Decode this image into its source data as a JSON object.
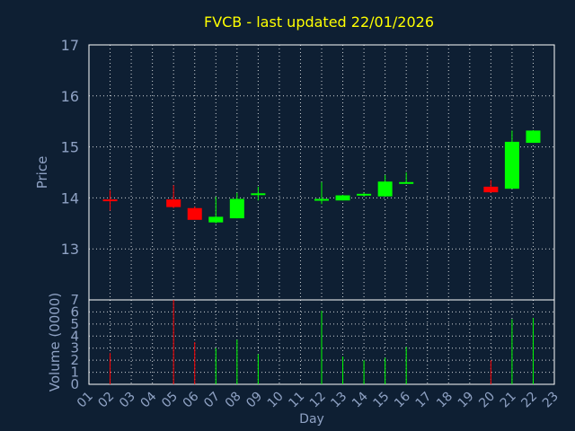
{
  "chart_data": {
    "type": "candlestick",
    "title": "FVCB - last updated 22/01/2026",
    "xlabel": "Day",
    "price_label": "Price",
    "volume_label": "Volume (0000)",
    "x_ticks": [
      "01",
      "02",
      "03",
      "04",
      "05",
      "06",
      "07",
      "08",
      "09",
      "10",
      "11",
      "12",
      "13",
      "14",
      "15",
      "16",
      "17",
      "18",
      "19",
      "20",
      "21",
      "22",
      "23"
    ],
    "price_ticks": [
      "17",
      "16",
      "15",
      "14",
      "13"
    ],
    "price_range": [
      12.0,
      17.0
    ],
    "volume_ticks": [
      "7",
      "6",
      "5",
      "4",
      "3",
      "2",
      "1",
      "0"
    ],
    "volume_range": [
      0,
      7
    ],
    "up_color": "#00ff00",
    "down_color": "#ff0000",
    "grid": true,
    "candles": [
      {
        "day": 2,
        "open": 13.97,
        "high": 14.15,
        "low": 13.75,
        "close": 13.95,
        "volume": 2.6
      },
      {
        "day": 5,
        "open": 13.97,
        "high": 14.25,
        "low": 13.8,
        "close": 13.82,
        "volume": 7.0
      },
      {
        "day": 6,
        "open": 13.8,
        "high": 13.83,
        "low": 13.58,
        "close": 13.57,
        "volume": 3.5
      },
      {
        "day": 7,
        "open": 13.52,
        "high": 14.02,
        "low": 13.5,
        "close": 13.63,
        "volume": 3.0
      },
      {
        "day": 8,
        "open": 13.6,
        "high": 14.1,
        "low": 13.6,
        "close": 13.98,
        "volume": 3.7
      },
      {
        "day": 9,
        "open": 14.06,
        "high": 14.22,
        "low": 13.95,
        "close": 14.09,
        "volume": 2.5
      },
      {
        "day": 12,
        "open": 13.96,
        "high": 14.31,
        "low": 13.88,
        "close": 13.98,
        "volume": 6.1
      },
      {
        "day": 13,
        "open": 13.95,
        "high": 14.06,
        "low": 13.95,
        "close": 14.05,
        "volume": 2.3
      },
      {
        "day": 14,
        "open": 14.05,
        "high": 14.1,
        "low": 14.03,
        "close": 14.08,
        "volume": 2.0
      },
      {
        "day": 15,
        "open": 14.03,
        "high": 14.45,
        "low": 14.03,
        "close": 14.32,
        "volume": 2.2
      },
      {
        "day": 16,
        "open": 14.28,
        "high": 14.5,
        "low": 14.28,
        "close": 14.31,
        "volume": 3.1
      },
      {
        "day": 20,
        "open": 14.22,
        "high": 14.35,
        "low": 14.1,
        "close": 14.11,
        "volume": 2.0
      },
      {
        "day": 21,
        "open": 14.18,
        "high": 15.32,
        "low": 14.18,
        "close": 15.1,
        "volume": 5.4
      },
      {
        "day": 22,
        "open": 15.08,
        "high": 15.33,
        "low": 15.08,
        "close": 15.32,
        "volume": 5.5
      }
    ]
  }
}
